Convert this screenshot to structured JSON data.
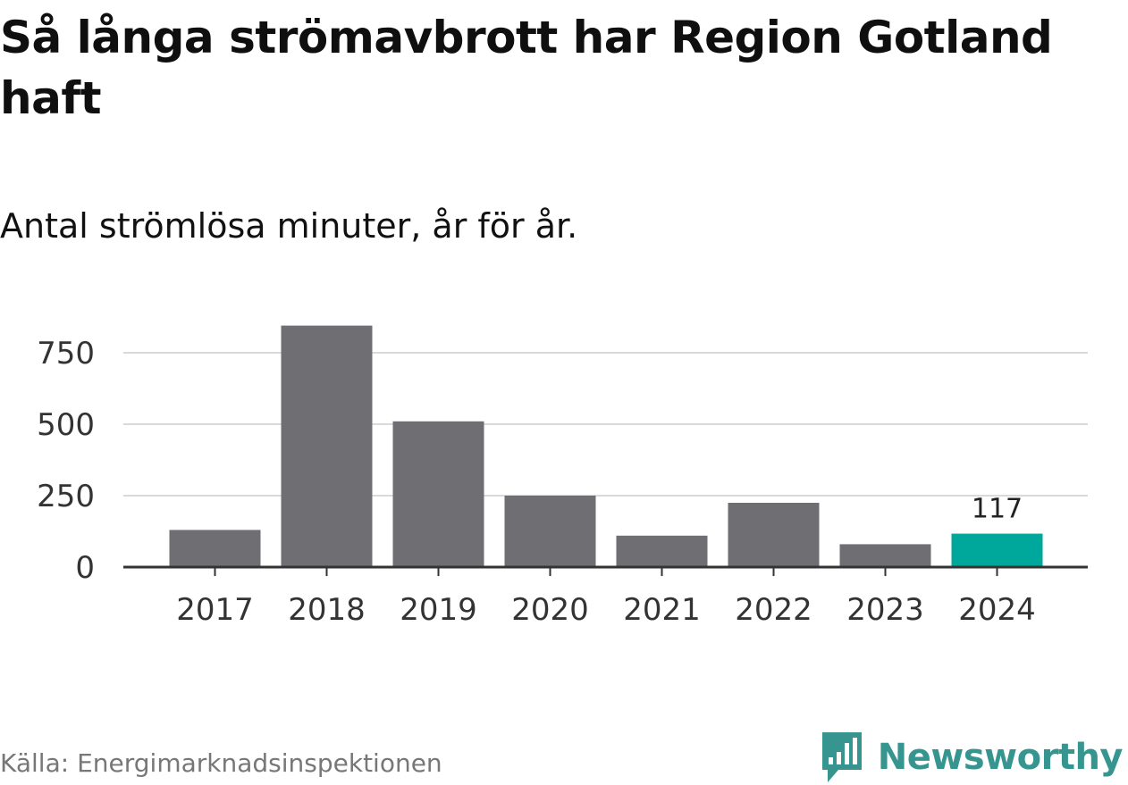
{
  "header": {
    "title": "Så långa strömavbrott har Region Gotland haft",
    "subtitle": "Antal strömlösa minuter, år för år."
  },
  "footer": {
    "source": "Källa: Energimarknadsinspektionen",
    "brand": "Newsworthy"
  },
  "colors": {
    "bar_default": "#6f6e73",
    "bar_highlight": "#00a79b",
    "grid": "#d9d9d9",
    "axis": "#333333",
    "brand": "#36958f"
  },
  "icons": {
    "brand_logo": "bar-chart-speech-bubble-icon"
  },
  "chart_data": {
    "type": "bar",
    "title": "Så långa strömavbrott har Region Gotland haft",
    "subtitle": "Antal strömlösa minuter, år för år.",
    "categories": [
      "2017",
      "2018",
      "2019",
      "2020",
      "2021",
      "2022",
      "2023",
      "2024"
    ],
    "values": [
      130,
      845,
      510,
      250,
      110,
      225,
      80,
      117
    ],
    "highlight_index": 7,
    "data_labels": [
      {
        "index": 7,
        "text": "117"
      }
    ],
    "xlabel": "",
    "ylabel": "",
    "ylim": [
      0,
      850
    ],
    "yticks": [
      0,
      250,
      500,
      750
    ],
    "ytick_labels": [
      "0",
      "250",
      "500",
      "750"
    ],
    "grid": true,
    "legend": "none"
  }
}
